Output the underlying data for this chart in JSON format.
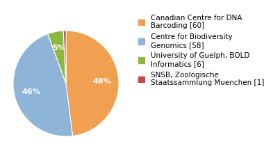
{
  "labels": [
    "Canadian Centre for DNA\nBarcoding [60]",
    "Centre for Biodiversity\nGenomics [58]",
    "University of Guelph, BOLD\nInformatics [6]",
    "SNSB, Zoologische\nStaatssammlung Muenchen [1]"
  ],
  "values": [
    60,
    58,
    6,
    1
  ],
  "colors": [
    "#f0a050",
    "#8eb4d8",
    "#8db840",
    "#cc4444"
  ],
  "background_color": "#ffffff",
  "text_color": "#ffffff",
  "autopct_fontsize": 8,
  "legend_fontsize": 7.5,
  "startangle": 90
}
